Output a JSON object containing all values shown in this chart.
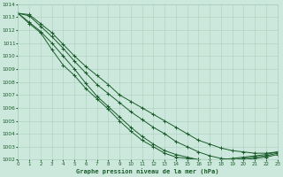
{
  "xlabel": "Graphe pression niveau de la mer (hPa)",
  "xlim": [
    0,
    23
  ],
  "ylim": [
    1002,
    1014
  ],
  "xticks": [
    0,
    1,
    2,
    3,
    4,
    5,
    6,
    7,
    8,
    9,
    10,
    11,
    12,
    13,
    14,
    15,
    16,
    17,
    18,
    19,
    20,
    21,
    22,
    23
  ],
  "yticks": [
    1002,
    1003,
    1004,
    1005,
    1006,
    1007,
    1008,
    1009,
    1010,
    1011,
    1012,
    1013,
    1014
  ],
  "bg_color": "#cce8dc",
  "grid_color": "#aacfbf",
  "line_color": "#1a5c2a",
  "series": [
    [
      1013.3,
      1013.2,
      1012.5,
      1011.8,
      1010.9,
      1010.0,
      1009.2,
      1008.5,
      1007.8,
      1007.0,
      1006.5,
      1006.0,
      1005.5,
      1005.0,
      1004.5,
      1004.0,
      1003.5,
      1003.2,
      1002.9,
      1002.7,
      1002.6,
      1002.5,
      1002.5,
      1002.6
    ],
    [
      1013.3,
      1013.1,
      1012.3,
      1011.5,
      1010.6,
      1009.6,
      1008.7,
      1007.8,
      1007.1,
      1006.4,
      1005.7,
      1005.1,
      1004.5,
      1004.0,
      1003.4,
      1003.0,
      1002.6,
      1002.3,
      1002.1,
      1002.0,
      1002.0,
      1002.1,
      1002.2,
      1002.4
    ],
    [
      1013.3,
      1012.6,
      1011.9,
      1011.0,
      1010.0,
      1009.0,
      1007.9,
      1006.9,
      1006.1,
      1005.3,
      1004.5,
      1003.8,
      1003.2,
      1002.7,
      1002.4,
      1002.2,
      1002.0,
      1002.0,
      1002.0,
      1002.1,
      1002.2,
      1002.3,
      1002.4,
      1002.6
    ],
    [
      1013.3,
      1012.5,
      1011.8,
      1010.5,
      1009.3,
      1008.5,
      1007.5,
      1006.7,
      1005.9,
      1005.0,
      1004.2,
      1003.5,
      1003.0,
      1002.5,
      1002.2,
      1002.1,
      1002.0,
      1001.95,
      1001.9,
      1002.0,
      1002.1,
      1002.2,
      1002.3,
      1002.5
    ]
  ]
}
